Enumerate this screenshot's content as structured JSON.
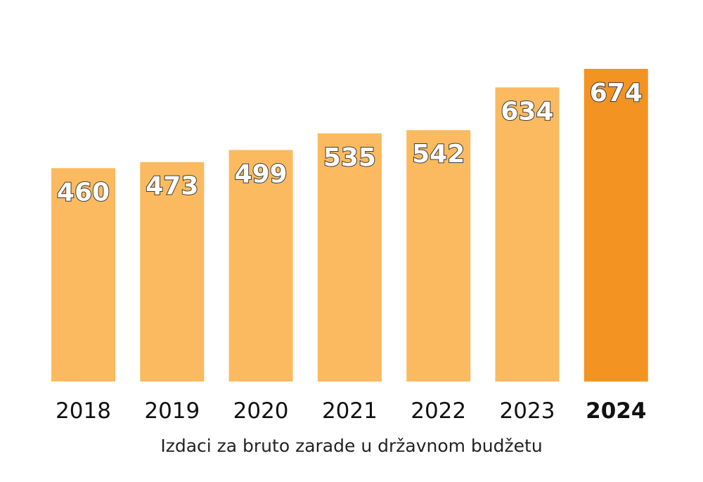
{
  "chart_data": {
    "type": "bar",
    "categories": [
      "2018",
      "2019",
      "2020",
      "2021",
      "2022",
      "2023",
      "2024"
    ],
    "values": [
      460,
      473,
      499,
      535,
      542,
      634,
      674
    ],
    "data_labels": [
      "460",
      "473",
      "499",
      "535",
      "542",
      "634",
      "674"
    ],
    "highlight_category": "2024",
    "ylim": [
      0,
      674
    ],
    "title": "",
    "xlabel": "Izdaci za bruto zarade u državnom budžetu",
    "ylabel": "",
    "grid": false,
    "legend": "none",
    "colors": {
      "bar": "#FBBA5F",
      "bar_highlight": "#F39322",
      "label_fill": "#ffffff",
      "label_stroke": "#3a3a3a",
      "tick_text": "#111111"
    }
  }
}
